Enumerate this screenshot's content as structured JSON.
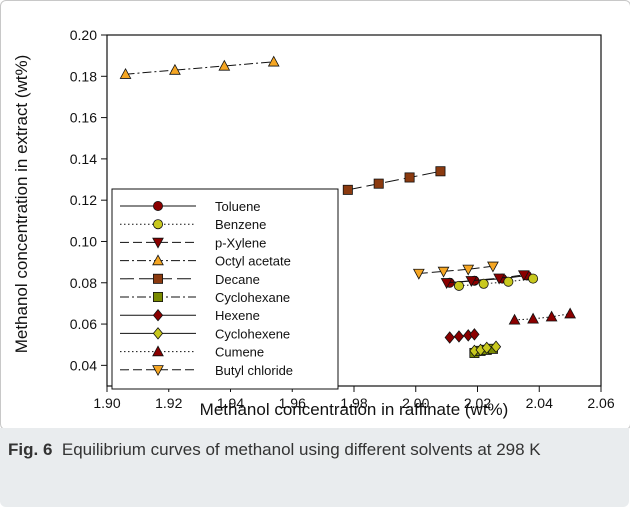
{
  "figure": {
    "label": "Fig. 6",
    "caption": "Equilibrium curves of methanol using different solvents at 298 K"
  },
  "chart_data": {
    "type": "scatter",
    "xlabel": "Methanol concentration in raffinate (wt%)",
    "ylabel": "Methanol concentration in extract (wt%)",
    "xlim": [
      1.9,
      2.06
    ],
    "ylim": [
      0.03,
      0.2
    ],
    "xticks": [
      "1.90",
      "1.92",
      "1.94",
      "1.96",
      "1.98",
      "2.00",
      "2.02",
      "2.04",
      "2.06"
    ],
    "yticks": [
      "0.04",
      "0.06",
      "0.08",
      "0.10",
      "0.12",
      "0.14",
      "0.16",
      "0.18",
      "0.20"
    ],
    "legend_position": "lower-left",
    "series": [
      {
        "name": "Toluene",
        "marker": "circle",
        "color": "#8b0000",
        "dash": "solid",
        "x": [
          2.011,
          2.019,
          2.028,
          2.036
        ],
        "y": [
          0.08,
          0.081,
          0.082,
          0.0835
        ]
      },
      {
        "name": "Benzene",
        "marker": "circle",
        "color": "#c8c81e",
        "dash": "dotted",
        "x": [
          2.014,
          2.022,
          2.03,
          2.038
        ],
        "y": [
          0.0785,
          0.0795,
          0.0805,
          0.082
        ]
      },
      {
        "name": "p-Xylene",
        "marker": "triangle-down",
        "color": "#8b0000",
        "dash": "dashed",
        "x": [
          2.01,
          2.018,
          2.027,
          2.035
        ],
        "y": [
          0.08,
          0.081,
          0.0822,
          0.0838
        ]
      },
      {
        "name": "Octyl acetate",
        "marker": "triangle-up",
        "color": "#f5a623",
        "dash": "dashdot",
        "x": [
          1.906,
          1.922,
          1.938,
          1.954
        ],
        "y": [
          0.181,
          0.183,
          0.185,
          0.187
        ]
      },
      {
        "name": "Decane",
        "marker": "square",
        "color": "#8b3a0f",
        "dash": "longdash",
        "x": [
          1.978,
          1.988,
          1.998,
          2.008
        ],
        "y": [
          0.125,
          0.128,
          0.131,
          0.134
        ]
      },
      {
        "name": "Cyclohexane",
        "marker": "square",
        "color": "#7a8b00",
        "dash": "dashdot",
        "x": [
          2.019,
          2.021,
          2.023,
          2.025
        ],
        "y": [
          0.046,
          0.047,
          0.0475,
          0.048
        ]
      },
      {
        "name": "Hexene",
        "marker": "diamond",
        "color": "#8b0000",
        "dash": "solid",
        "x": [
          2.011,
          2.014,
          2.017,
          2.019
        ],
        "y": [
          0.0535,
          0.054,
          0.0545,
          0.055
        ]
      },
      {
        "name": "Cyclohexene",
        "marker": "diamond",
        "color": "#c8c81e",
        "dash": "solid",
        "x": [
          2.019,
          2.021,
          2.023,
          2.026
        ],
        "y": [
          0.047,
          0.0475,
          0.0485,
          0.049
        ]
      },
      {
        "name": "Cumene",
        "marker": "triangle-up",
        "color": "#8b0000",
        "dash": "dotted",
        "x": [
          2.032,
          2.038,
          2.044,
          2.05
        ],
        "y": [
          0.062,
          0.0625,
          0.0635,
          0.065
        ]
      },
      {
        "name": "Butyl chloride",
        "marker": "triangle-down",
        "color": "#f5a623",
        "dash": "dashed",
        "x": [
          2.001,
          2.009,
          2.017,
          2.025
        ],
        "y": [
          0.0845,
          0.0855,
          0.0865,
          0.088
        ]
      }
    ]
  }
}
